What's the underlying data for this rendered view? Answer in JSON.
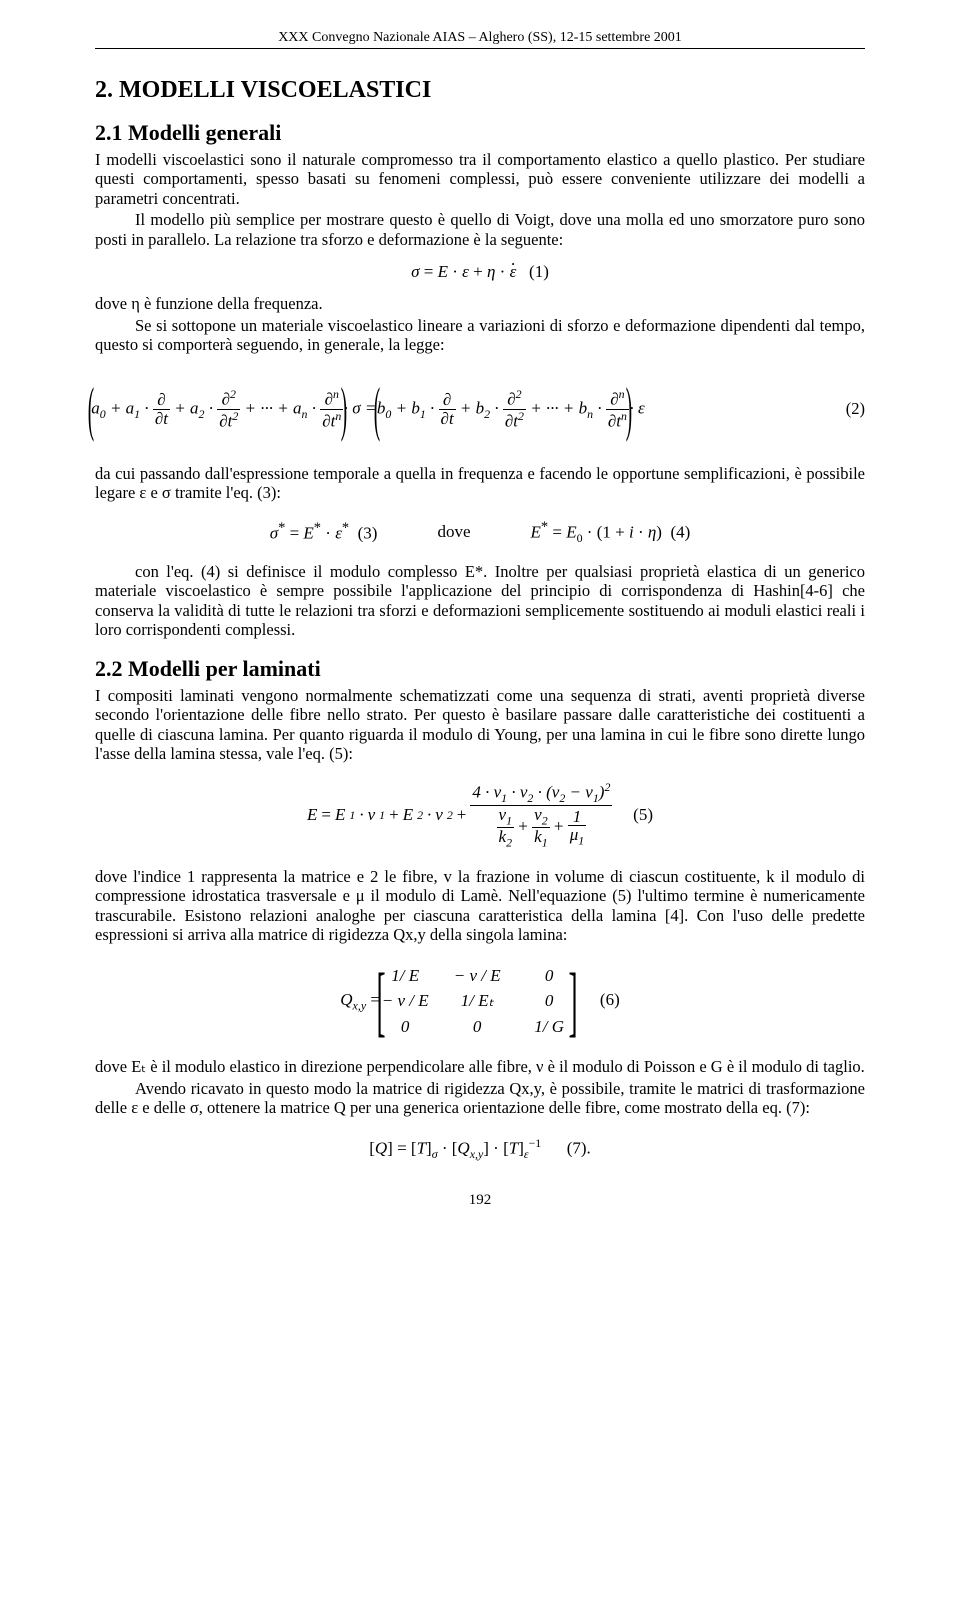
{
  "header_line": "XXX Convegno Nazionale AIAS – Alghero (SS), 12-15 settembre 2001",
  "section2": {
    "heading": "2.  MODELLI VISCOELASTICI",
    "sub21_heading": "2.1  Modelli generali",
    "p1": "I modelli viscoelastici sono il naturale compromesso tra il comportamento elastico a quello plastico. Per studiare questi comportamenti, spesso basati su fenomeni complessi, può essere conveniente utilizzare dei modelli a parametri concentrati.",
    "p2": "Il modello più semplice per mostrare questo è quello di Voigt, dove una molla ed uno smorzatore puro sono posti in parallelo. La relazione tra sforzo e deformazione è la seguente:",
    "eq1": "σ = E · ε + η · ε̇   (1)",
    "p3a": "dove η è funzione della frequenza.",
    "p3b": "Se si sottopone un materiale viscoelastico lineare a variazioni di sforzo e deformazione dipendenti dal tempo, questo si comporterà seguendo, in generale, la legge:",
    "eq2_label": "(2)",
    "p4": "da cui passando dall'espressione temporale a quella in frequenza e facendo le opportune semplificazioni, è possibile legare ε e σ tramite l'eq. (3):",
    "eq3": "σ* = E* · ε*   (3)",
    "eq3_dove": "dove",
    "eq4": "E* = E₀ · (1 + i · η)   (4)",
    "p5": "con l'eq. (4) si definisce il modulo complesso E*. Inoltre per qualsiasi proprietà elastica di un generico materiale viscoelastico è sempre possibile l'applicazione del principio di corrispondenza di Hashin[4-6] che conserva la validità di tutte le relazioni tra sforzi e deformazioni semplicemente sostituendo ai moduli elastici reali i loro corrispondenti complessi."
  },
  "section22": {
    "heading": "2.2  Modelli per laminati",
    "p1": "I compositi laminati vengono normalmente schematizzati come una sequenza di strati, aventi proprietà diverse secondo l'orientazione delle fibre nello strato. Per questo è basilare passare dalle caratteristiche dei costituenti a quelle di ciascuna lamina. Per quanto riguarda il modulo di Young, per una lamina in cui le fibre sono dirette lungo l'asse della lamina stessa, vale l'eq. (5):",
    "eq5_label": "(5)",
    "p2": "dove l'indice 1 rappresenta la matrice e 2 le fibre, v la frazione in volume di ciascun costituente, k il modulo di compressione idrostatica trasversale e μ il modulo di Lamè. Nell'equazione (5) l'ultimo termine è numericamente trascurabile. Esistono relazioni analoghe per ciascuna caratteristica della lamina [4]. Con l'uso delle predette espressioni si arriva alla matrice di rigidezza Qx,y della singola lamina:",
    "eq6_label": "(6)",
    "matrix": {
      "rows": [
        [
          "1/ E",
          "− ν / E",
          "0"
        ],
        [
          "− ν / E",
          "1/ Eₜ",
          "0"
        ],
        [
          "0",
          "0",
          "1/ G"
        ]
      ],
      "lhs": "Qx,y ="
    },
    "p3": "dove Eₜ è il modulo elastico in direzione perpendicolare alle fibre, ν è il modulo di Poisson e G è il modulo di taglio.",
    "p4": "Avendo ricavato in questo modo la matrice di rigidezza Qx,y, è possibile, tramite le matrici di trasformazione delle ε e delle σ, ottenere la matrice Q per una generica orientazione delle fibre, come mostrato della eq. (7):",
    "eq7": "[Q] = [T]σ · [Qx,y] · [T]ε⁻¹     (7).",
    "eq7_label": "(7)."
  },
  "page_number": "192",
  "colors": {
    "text": "#000000",
    "background": "#ffffff",
    "rule": "#000000"
  },
  "typography": {
    "body_family": "Times New Roman",
    "body_size_pt": 12,
    "h2_size_pt": 18,
    "h3_size_pt": 16
  }
}
